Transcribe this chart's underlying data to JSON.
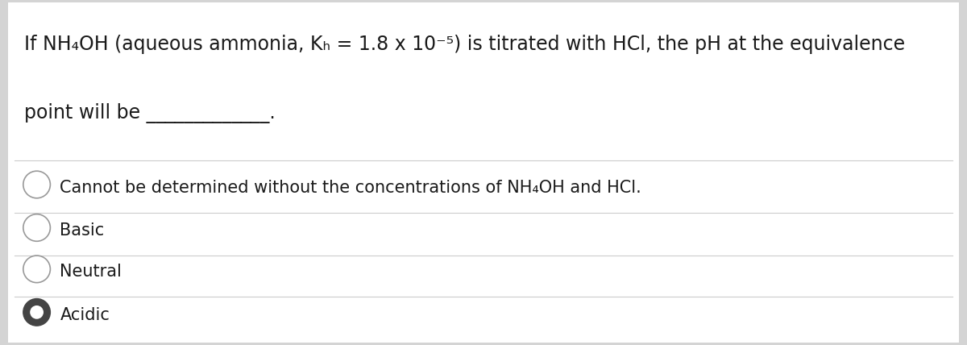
{
  "background_color": "#d4d4d4",
  "card_color": "#ffffff",
  "question_line1": "If NH₄OH (aqueous ammonia, Kₕ = 1.8 x 10⁻⁵) is titrated with HCl, the pH at the equivalence",
  "question_line2": "point will be _____________.",
  "options": [
    "Cannot be determined without the concentrations of NH₄OH and HCl.",
    "Basic",
    "Neutral",
    "Acidic"
  ],
  "selected_option": 3,
  "text_color": "#1a1a1a",
  "line_color": "#cccccc",
  "circle_edge_color": "#999999",
  "selected_circle_color": "#444444",
  "font_size_question": 17,
  "font_size_options": 15,
  "figsize": [
    12.0,
    4.28
  ],
  "dpi": 100
}
